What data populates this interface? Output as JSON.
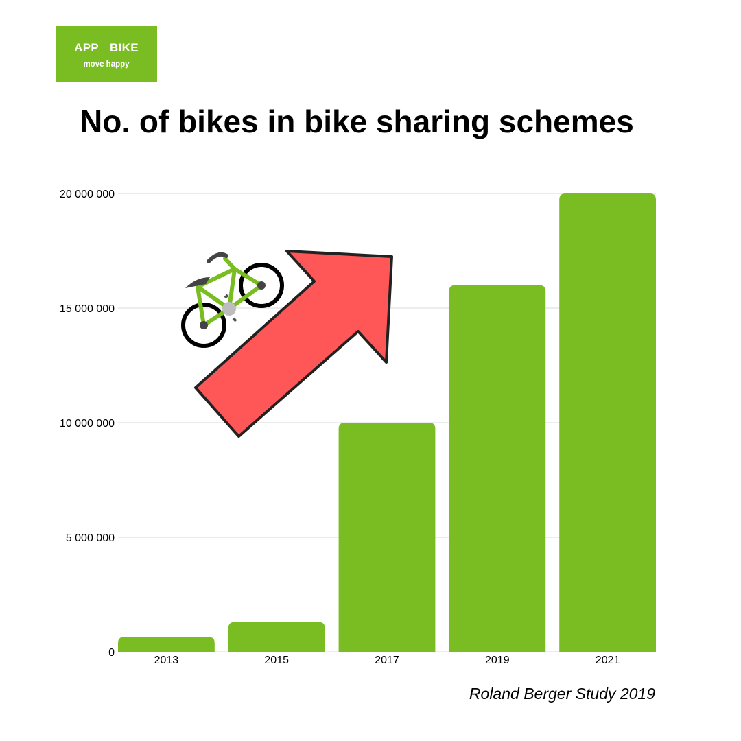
{
  "logo": {
    "brand_left": "APP",
    "brand_right": "BIKE",
    "tagline": "move happy",
    "bg_color": "#7abd22"
  },
  "decorations": [
    "bike-icon",
    "arrow-up-right-icon"
  ],
  "colors": {
    "bar": "#7abd22",
    "arrow": "#ff5757",
    "grid": "#d9d9d9"
  },
  "source": "Roland Berger Study 2019",
  "chart_data": {
    "type": "bar",
    "title": "No. of bikes in bike sharing schemes",
    "categories": [
      "2013",
      "2015",
      "2017",
      "2019",
      "2021"
    ],
    "values": [
      650000,
      1300000,
      10000000,
      16000000,
      20000000
    ],
    "xlabel": "",
    "ylabel": "",
    "ylim": [
      0,
      20000000
    ],
    "yticks": [
      0,
      5000000,
      10000000,
      15000000,
      20000000
    ],
    "ytick_labels": [
      "0",
      "5 000 000",
      "10 000 000",
      "15 000 000",
      "20 000 000"
    ],
    "grid": true,
    "legend": "none"
  }
}
